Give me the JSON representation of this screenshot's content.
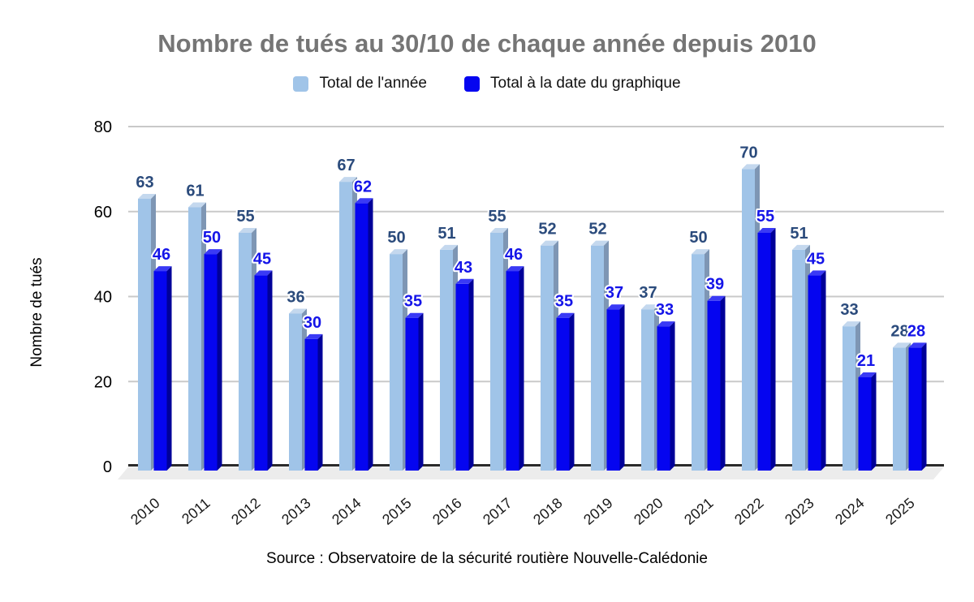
{
  "header": {
    "title": "Nombre de tués au 30/10 de chaque année depuis 2010"
  },
  "source_note": "Source : Observatoire de la sécurité routière Nouvelle-Calédonie",
  "palette": {
    "title": "#757575",
    "grid": "#C9C9C9",
    "axis": "#2B2B2B",
    "floor": "#ECECEC",
    "text": "#000000",
    "label_halo": "#FFFFFF"
  },
  "chart_data": {
    "type": "bar",
    "title": "Nombre de tués au 30/10 de chaque année depuis 2010",
    "xlabel": "",
    "ylabel": "Nombre de tués",
    "ylim": [
      0,
      80
    ],
    "yticks": [
      0,
      20,
      40,
      60,
      80
    ],
    "grid": true,
    "legend_position": "top",
    "style": "3d-columns",
    "categories": [
      "2010",
      "2011",
      "2012",
      "2013",
      "2014",
      "2015",
      "2016",
      "2017",
      "2018",
      "2019",
      "2020",
      "2021",
      "2022",
      "2023",
      "2024",
      "2025"
    ],
    "series": [
      {
        "name": "Total de l'année",
        "values": [
          63,
          61,
          55,
          36,
          67,
          50,
          51,
          55,
          52,
          52,
          37,
          50,
          70,
          51,
          33,
          28
        ],
        "color": "#A0C4E8",
        "side_color": "#7E96B4",
        "top_color": "#C4D8EE",
        "label_color": "#2B4B7C"
      },
      {
        "name": "Total à la date du graphique",
        "values": [
          46,
          50,
          45,
          30,
          62,
          35,
          43,
          46,
          35,
          37,
          33,
          39,
          55,
          45,
          21,
          28
        ],
        "color": "#0505F0",
        "side_color": "#000099",
        "top_color": "#3A3AF5",
        "label_color": "#1414E8"
      }
    ]
  }
}
